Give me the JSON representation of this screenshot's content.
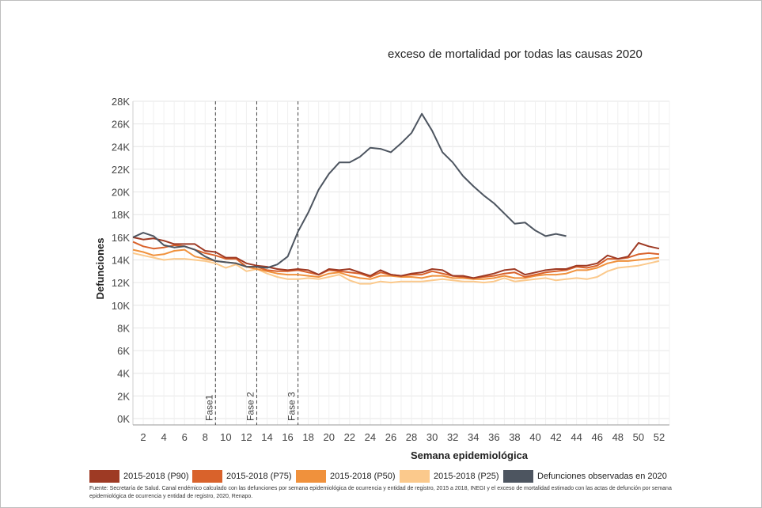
{
  "title": "exceso de mortalidad por todas las causas 2020",
  "source": "Fuente: Secretaría de Salud. Canal endémico calculado con las defunciones por semana epidemiológica de ocurrencia y entidad de registro, 2015 a 2018, INEGI y el exceso de mortalidad estimado con las actas de defunción por semana epidemiológica de ocurrencia y entidad de registro, 2020, Renapo.",
  "legend": [
    {
      "label": "2015-2018 (P90)",
      "color": "#9e3a24"
    },
    {
      "label": "2015-2018 (P75)",
      "color": "#d9622b"
    },
    {
      "label": "2015-2018 (P50)",
      "color": "#f0913c"
    },
    {
      "label": "2015-2018 (P25)",
      "color": "#fbc98c"
    },
    {
      "label": "Defunciones observadas en 2020",
      "color": "#4d5560"
    }
  ],
  "chart_data": {
    "type": "line",
    "title": "exceso de mortalidad por todas las causas 2020",
    "xlabel": "Semana epidemiológica",
    "ylabel": "Defunciones",
    "xlim": [
      1,
      53
    ],
    "ylim": [
      0,
      28000
    ],
    "x_ticks": [
      2,
      4,
      6,
      8,
      10,
      12,
      14,
      16,
      18,
      20,
      22,
      24,
      26,
      28,
      30,
      32,
      34,
      36,
      38,
      40,
      42,
      44,
      46,
      48,
      50,
      52
    ],
    "y_ticks": [
      0,
      2000,
      4000,
      6000,
      8000,
      10000,
      12000,
      14000,
      16000,
      18000,
      20000,
      22000,
      24000,
      26000,
      28000
    ],
    "y_tick_labels": [
      "0K",
      "2K",
      "4K",
      "6K",
      "8K",
      "10K",
      "12K",
      "14K",
      "16K",
      "18K",
      "20K",
      "22K",
      "24K",
      "26K",
      "28K"
    ],
    "grid": true,
    "legend_position": "bottom",
    "annotations": [
      {
        "x": 9,
        "label": "Fase1"
      },
      {
        "x": 13,
        "label": "Fase 2"
      },
      {
        "x": 17,
        "label": "Fase 3"
      }
    ],
    "series": [
      {
        "name": "2015-2018 (P90)",
        "color": "#9e3a24",
        "x": [
          1,
          2,
          3,
          4,
          5,
          6,
          7,
          8,
          9,
          10,
          11,
          12,
          13,
          14,
          15,
          16,
          17,
          18,
          19,
          20,
          21,
          22,
          23,
          24,
          25,
          26,
          27,
          28,
          29,
          30,
          31,
          32,
          33,
          34,
          35,
          36,
          37,
          38,
          39,
          40,
          41,
          42,
          43,
          44,
          45,
          46,
          47,
          48,
          49,
          50,
          51,
          52
        ],
        "values": [
          16000,
          15800,
          15900,
          15700,
          15400,
          15400,
          15400,
          14800,
          14700,
          14200,
          14200,
          13700,
          13500,
          13400,
          13200,
          13100,
          13200,
          13100,
          12700,
          13200,
          13100,
          13200,
          12900,
          12600,
          13100,
          12700,
          12600,
          12800,
          12900,
          13200,
          13100,
          12600,
          12600,
          12400,
          12600,
          12800,
          13100,
          13200,
          12700,
          12900,
          13100,
          13200,
          13200,
          13500,
          13500,
          13700,
          14400,
          14100,
          14300,
          15500,
          15200,
          15000
        ]
      },
      {
        "name": "2015-2018 (P75)",
        "color": "#d9622b",
        "x": [
          1,
          2,
          3,
          4,
          5,
          6,
          7,
          8,
          9,
          10,
          11,
          12,
          13,
          14,
          15,
          16,
          17,
          18,
          19,
          20,
          21,
          22,
          23,
          24,
          25,
          26,
          27,
          28,
          29,
          30,
          31,
          32,
          33,
          34,
          35,
          36,
          37,
          38,
          39,
          40,
          41,
          42,
          43,
          44,
          45,
          46,
          47,
          48,
          49,
          50,
          51,
          52
        ],
        "values": [
          15600,
          15200,
          15000,
          15100,
          15300,
          15200,
          14900,
          14600,
          14400,
          14100,
          14100,
          13400,
          13400,
          13100,
          13000,
          13000,
          13100,
          12900,
          12700,
          13100,
          13000,
          12900,
          12800,
          12500,
          12900,
          12700,
          12600,
          12700,
          12700,
          13000,
          12800,
          12600,
          12500,
          12400,
          12500,
          12600,
          12800,
          12900,
          12500,
          12700,
          12900,
          13000,
          13100,
          13400,
          13300,
          13500,
          14100,
          14100,
          14200,
          14500,
          14600,
          14500
        ]
      },
      {
        "name": "2015-2018 (P50)",
        "color": "#f0913c",
        "x": [
          1,
          2,
          3,
          4,
          5,
          6,
          7,
          8,
          9,
          10,
          11,
          12,
          13,
          14,
          15,
          16,
          17,
          18,
          19,
          20,
          21,
          22,
          23,
          24,
          25,
          26,
          27,
          28,
          29,
          30,
          31,
          32,
          33,
          34,
          35,
          36,
          37,
          38,
          39,
          40,
          41,
          42,
          43,
          44,
          45,
          46,
          47,
          48,
          49,
          50,
          51,
          52
        ],
        "values": [
          14900,
          14700,
          14400,
          14500,
          14800,
          14900,
          14300,
          14100,
          13900,
          13800,
          13700,
          13400,
          13200,
          13000,
          12800,
          12700,
          12700,
          12600,
          12500,
          12800,
          12900,
          12600,
          12400,
          12300,
          12600,
          12600,
          12500,
          12500,
          12400,
          12600,
          12600,
          12400,
          12400,
          12300,
          12300,
          12400,
          12600,
          12400,
          12400,
          12600,
          12700,
          12700,
          12800,
          13100,
          13100,
          13300,
          13700,
          13900,
          13900,
          14000,
          14100,
          14200
        ]
      },
      {
        "name": "2015-2018 (P25)",
        "color": "#fbc98c",
        "x": [
          1,
          2,
          3,
          4,
          5,
          6,
          7,
          8,
          9,
          10,
          11,
          12,
          13,
          14,
          15,
          16,
          17,
          18,
          19,
          20,
          21,
          22,
          23,
          24,
          25,
          26,
          27,
          28,
          29,
          30,
          31,
          32,
          33,
          34,
          35,
          36,
          37,
          38,
          39,
          40,
          41,
          42,
          43,
          44,
          45,
          46,
          47,
          48,
          49,
          50,
          51,
          52
        ],
        "values": [
          14600,
          14400,
          14200,
          14000,
          14100,
          14100,
          14000,
          13900,
          13700,
          13300,
          13600,
          13000,
          13200,
          12800,
          12500,
          12300,
          12300,
          12400,
          12300,
          12500,
          12700,
          12200,
          11900,
          11900,
          12100,
          12000,
          12100,
          12100,
          12100,
          12200,
          12300,
          12200,
          12100,
          12100,
          12000,
          12100,
          12400,
          12100,
          12200,
          12300,
          12400,
          12200,
          12300,
          12400,
          12300,
          12500,
          13000,
          13300,
          13400,
          13500,
          13700,
          13900
        ]
      },
      {
        "name": "Defunciones observadas en 2020",
        "color": "#4d5560",
        "x": [
          1,
          2,
          3,
          4,
          5,
          6,
          7,
          8,
          9,
          10,
          11,
          12,
          13,
          14,
          15,
          16,
          17,
          18,
          19,
          20,
          21,
          22,
          23,
          24,
          25,
          26,
          27,
          28,
          29,
          30,
          31,
          32,
          33,
          34,
          35,
          36,
          37,
          38,
          39,
          40,
          41,
          42,
          43
        ],
        "values": [
          16000,
          16400,
          16100,
          15300,
          15100,
          15200,
          14900,
          14300,
          13900,
          13800,
          13700,
          13400,
          13400,
          13300,
          13600,
          14300,
          16500,
          18200,
          20200,
          21600,
          22600,
          22600,
          23100,
          23900,
          23800,
          23500,
          24300,
          25200,
          26900,
          25400,
          23500,
          22600,
          21400,
          20500,
          19700,
          19000,
          18100,
          17200,
          17300,
          16600,
          16100,
          16300,
          16100
        ]
      }
    ]
  }
}
